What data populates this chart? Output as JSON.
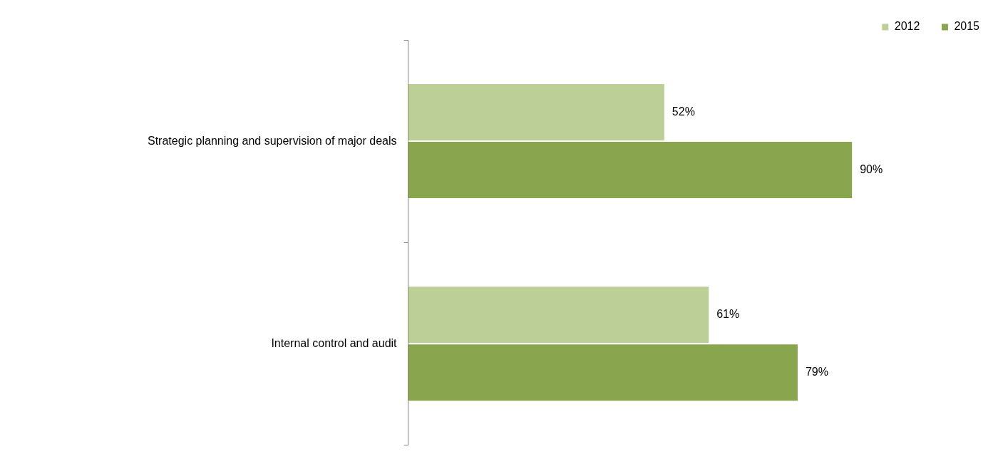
{
  "chart_data": {
    "type": "bar",
    "orientation": "horizontal",
    "categories": [
      "Strategic planning and supervision of major deals",
      "Internal control and audit"
    ],
    "series": [
      {
        "name": "2012",
        "color": "#bbcf96",
        "values": [
          52,
          61
        ],
        "value_labels": [
          "52%",
          "61%"
        ]
      },
      {
        "name": "2015",
        "color": "#89a54e",
        "values": [
          90,
          79
        ],
        "value_labels": [
          "90%",
          "79%"
        ]
      }
    ],
    "legend": "top right"
  }
}
